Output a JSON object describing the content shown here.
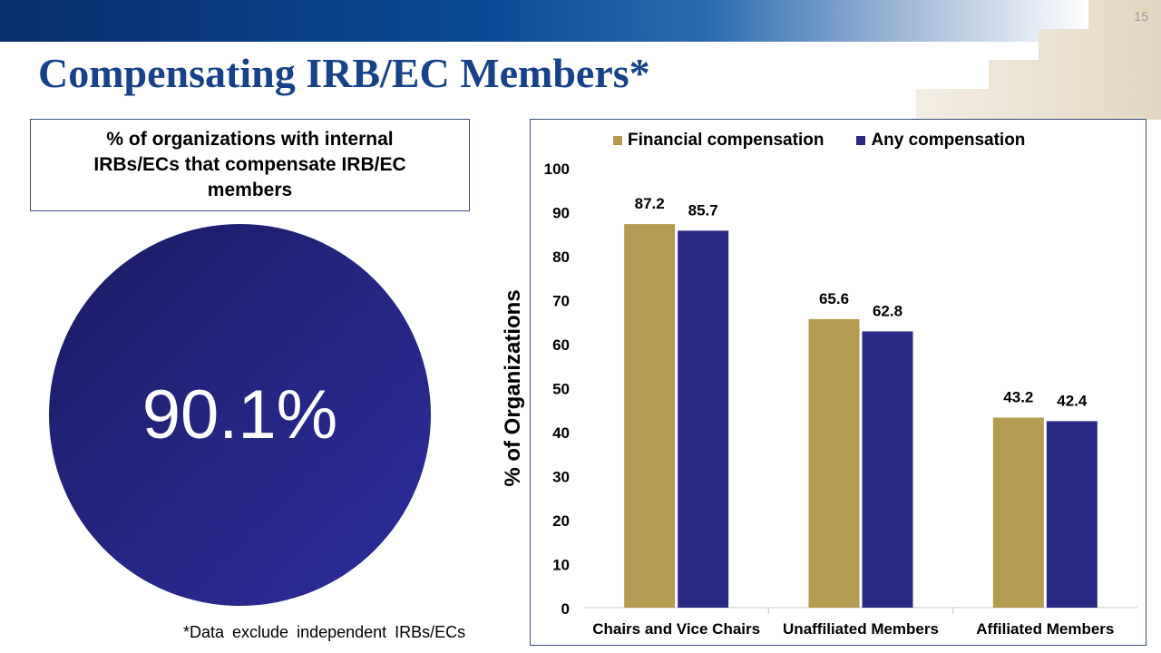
{
  "slide": {
    "number": "15",
    "title": "Compensating IRB/EC Members*",
    "caption": "% of organizations with internal IRBs/ECs that compensate IRB/EC members",
    "big_stat": "90.1%",
    "footnote": "*Data exclude independent IRBs/ECs"
  },
  "colors": {
    "title": "#17428a",
    "financial": "#b59a52",
    "any": "#2b2a82",
    "circle": "#252582"
  },
  "chart_data": {
    "type": "bar",
    "categories": [
      "Chairs and Vice Chairs",
      "Unaffiliated Members",
      "Affiliated Members"
    ],
    "series": [
      {
        "name": "Financial compensation",
        "values": [
          87.2,
          65.6,
          43.2
        ]
      },
      {
        "name": "Any compensation",
        "values": [
          85.7,
          62.8,
          42.4
        ]
      }
    ],
    "title": "",
    "xlabel": "",
    "ylabel": "% of Organizations",
    "ylim": [
      0,
      100
    ],
    "yticks": [
      0,
      10,
      20,
      30,
      40,
      50,
      60,
      70,
      80,
      90,
      100
    ],
    "grid": false,
    "legend": "top"
  }
}
